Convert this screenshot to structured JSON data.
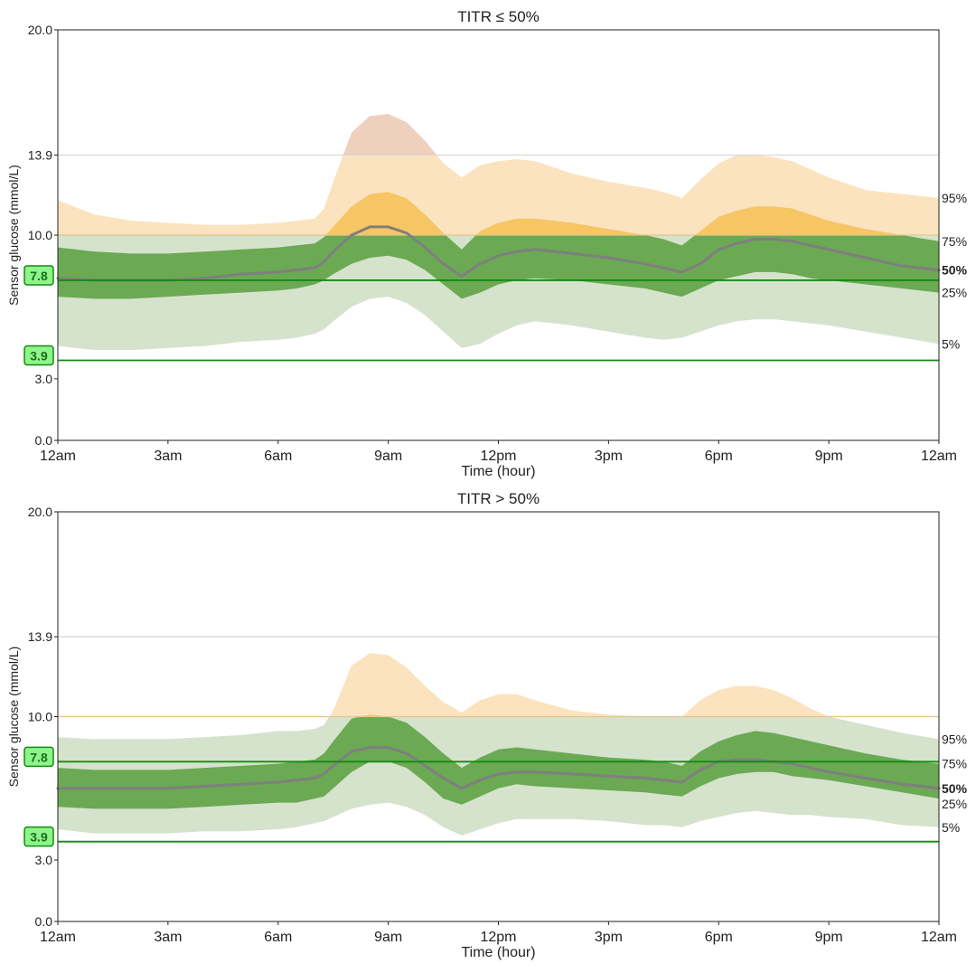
{
  "chart_data": [
    {
      "type": "area",
      "title": "TITR ≤ 50%",
      "xlabel": "Time (hour)",
      "ylabel": "Sensor glucose (mmol/L)",
      "ylim": [
        0,
        20
      ],
      "xlim": [
        0,
        24
      ],
      "yticks": [
        {
          "value": 0,
          "label": "0.0"
        },
        {
          "value": 3,
          "label": "3.0"
        },
        {
          "value": 10,
          "label": "10.0"
        },
        {
          "value": 13.9,
          "label": "13.9"
        },
        {
          "value": 20,
          "label": "20.0"
        }
      ],
      "xticks": [
        {
          "value": 0,
          "label": "12am"
        },
        {
          "value": 3,
          "label": "3am"
        },
        {
          "value": 6,
          "label": "6am"
        },
        {
          "value": 9,
          "label": "9am"
        },
        {
          "value": 12,
          "label": "12pm"
        },
        {
          "value": 15,
          "label": "3pm"
        },
        {
          "value": 18,
          "label": "6pm"
        },
        {
          "value": 21,
          "label": "9pm"
        },
        {
          "value": 24,
          "label": "12am"
        }
      ],
      "target_lines": [
        {
          "value": 7.8,
          "label": "7.8",
          "color": "#138a13",
          "boxed": true
        },
        {
          "value": 3.9,
          "label": "3.9",
          "color": "#138a13",
          "boxed": true
        }
      ],
      "reference_lines": [
        {
          "value": 10.0,
          "color": "#e7c48a"
        },
        {
          "value": 13.9,
          "color": "#d8d8d8"
        }
      ],
      "x": [
        0,
        1,
        2,
        3,
        4,
        5,
        6,
        6.5,
        7,
        7.25,
        7.5,
        8,
        8.5,
        9,
        9.5,
        10,
        10.5,
        11,
        11.5,
        12,
        12.5,
        13,
        14,
        15,
        16,
        16.5,
        17,
        17.5,
        18,
        18.5,
        19,
        19.5,
        20,
        20.5,
        21,
        22,
        23,
        24
      ],
      "series": [
        {
          "name": "5%",
          "values": [
            4.6,
            4.4,
            4.4,
            4.5,
            4.6,
            4.8,
            4.9,
            5.0,
            5.2,
            5.4,
            5.8,
            6.5,
            6.9,
            7.0,
            6.7,
            6.1,
            5.3,
            4.5,
            4.7,
            5.2,
            5.6,
            5.8,
            5.6,
            5.3,
            5.0,
            4.9,
            5.0,
            5.3,
            5.6,
            5.8,
            5.9,
            5.9,
            5.8,
            5.7,
            5.6,
            5.3,
            5.0,
            4.7
          ]
        },
        {
          "name": "25%",
          "values": [
            7.0,
            6.9,
            6.9,
            7.0,
            7.1,
            7.2,
            7.3,
            7.4,
            7.6,
            7.8,
            8.1,
            8.6,
            8.9,
            9.0,
            8.8,
            8.3,
            7.6,
            6.9,
            7.2,
            7.6,
            7.8,
            7.9,
            7.8,
            7.6,
            7.4,
            7.2,
            7.0,
            7.4,
            7.8,
            8.0,
            8.2,
            8.2,
            8.1,
            7.9,
            7.8,
            7.6,
            7.4,
            7.2
          ]
        },
        {
          "name": "50%",
          "values": [
            7.9,
            7.8,
            7.8,
            7.8,
            7.9,
            8.1,
            8.2,
            8.3,
            8.4,
            8.7,
            9.2,
            10.0,
            10.4,
            10.4,
            10.1,
            9.4,
            8.6,
            8.0,
            8.6,
            9.0,
            9.2,
            9.3,
            9.1,
            8.9,
            8.6,
            8.4,
            8.2,
            8.6,
            9.3,
            9.6,
            9.8,
            9.8,
            9.7,
            9.5,
            9.3,
            8.9,
            8.5,
            8.3
          ]
        },
        {
          "name": "75%",
          "values": [
            9.4,
            9.2,
            9.1,
            9.1,
            9.2,
            9.3,
            9.4,
            9.5,
            9.6,
            9.9,
            10.4,
            11.4,
            12.0,
            12.1,
            11.8,
            11.0,
            10.1,
            9.3,
            10.2,
            10.6,
            10.8,
            10.8,
            10.6,
            10.3,
            10.0,
            9.8,
            9.5,
            10.2,
            10.9,
            11.2,
            11.4,
            11.4,
            11.3,
            11.0,
            10.7,
            10.3,
            10.0,
            9.7
          ]
        },
        {
          "name": "95%",
          "values": [
            11.7,
            11.0,
            10.7,
            10.6,
            10.5,
            10.5,
            10.6,
            10.7,
            10.8,
            11.3,
            12.6,
            15.0,
            15.8,
            15.9,
            15.5,
            14.6,
            13.5,
            12.8,
            13.4,
            13.6,
            13.7,
            13.6,
            13.0,
            12.6,
            12.3,
            12.1,
            11.8,
            12.7,
            13.5,
            13.9,
            13.9,
            13.8,
            13.6,
            13.2,
            12.8,
            12.2,
            12.0,
            11.8
          ]
        }
      ],
      "right_labels": [
        "95%",
        "75%",
        "50%",
        "25%",
        "5%"
      ],
      "colors": {
        "outer_in_range": "#d5e3cc",
        "inner_in_range": "#6ba953",
        "outer_high": "#fbe3bf",
        "inner_high": "#f6c665",
        "outer_very_high": "#efcfbd",
        "inner_very_high": "#e7a228",
        "median": "#7f7f7f",
        "target": "#138a13",
        "target_box": "#8ef58a"
      }
    },
    {
      "type": "area",
      "title": "TITR > 50%",
      "xlabel": "Time (hour)",
      "ylabel": "Sensor glucose (mmol/L)",
      "ylim": [
        0,
        20
      ],
      "xlim": [
        0,
        24
      ],
      "yticks": [
        {
          "value": 0,
          "label": "0.0"
        },
        {
          "value": 3,
          "label": "3.0"
        },
        {
          "value": 10,
          "label": "10.0"
        },
        {
          "value": 13.9,
          "label": "13.9"
        },
        {
          "value": 20,
          "label": "20.0"
        }
      ],
      "xticks": [
        {
          "value": 0,
          "label": "12am"
        },
        {
          "value": 3,
          "label": "3am"
        },
        {
          "value": 6,
          "label": "6am"
        },
        {
          "value": 9,
          "label": "9am"
        },
        {
          "value": 12,
          "label": "12pm"
        },
        {
          "value": 15,
          "label": "3pm"
        },
        {
          "value": 18,
          "label": "6pm"
        },
        {
          "value": 21,
          "label": "9pm"
        },
        {
          "value": 24,
          "label": "12am"
        }
      ],
      "target_lines": [
        {
          "value": 7.8,
          "label": "7.8",
          "color": "#138a13",
          "boxed": true
        },
        {
          "value": 3.9,
          "label": "3.9",
          "color": "#138a13",
          "boxed": true
        }
      ],
      "reference_lines": [
        {
          "value": 10.0,
          "color": "#e7c48a"
        },
        {
          "value": 13.9,
          "color": "#d8d8d8"
        }
      ],
      "x": [
        0,
        1,
        2,
        3,
        4,
        5,
        6,
        6.5,
        7,
        7.25,
        7.5,
        8,
        8.5,
        9,
        9.5,
        10,
        10.5,
        11,
        11.5,
        12,
        12.5,
        13,
        14,
        15,
        16,
        16.5,
        17,
        17.5,
        18,
        18.5,
        19,
        19.5,
        20,
        20.5,
        21,
        22,
        23,
        24
      ],
      "series": [
        {
          "name": "5%",
          "values": [
            4.5,
            4.3,
            4.3,
            4.3,
            4.4,
            4.4,
            4.5,
            4.6,
            4.8,
            4.9,
            5.1,
            5.5,
            5.7,
            5.8,
            5.6,
            5.2,
            4.6,
            4.2,
            4.5,
            4.8,
            5.0,
            5.0,
            5.0,
            4.9,
            4.7,
            4.7,
            4.6,
            4.9,
            5.1,
            5.3,
            5.4,
            5.3,
            5.2,
            5.2,
            5.1,
            5.0,
            4.7,
            4.6
          ]
        },
        {
          "name": "25%",
          "values": [
            5.6,
            5.5,
            5.5,
            5.5,
            5.6,
            5.7,
            5.8,
            5.8,
            6.0,
            6.1,
            6.5,
            7.3,
            7.8,
            7.8,
            7.5,
            6.8,
            6.0,
            5.7,
            6.1,
            6.5,
            6.7,
            6.6,
            6.5,
            6.4,
            6.3,
            6.2,
            6.1,
            6.6,
            7.0,
            7.2,
            7.3,
            7.3,
            7.1,
            7.0,
            6.9,
            6.6,
            6.3,
            6.0
          ]
        },
        {
          "name": "50%",
          "values": [
            6.5,
            6.5,
            6.5,
            6.5,
            6.6,
            6.7,
            6.8,
            6.9,
            7.0,
            7.2,
            7.6,
            8.3,
            8.5,
            8.5,
            8.2,
            7.6,
            7.0,
            6.5,
            6.9,
            7.2,
            7.3,
            7.3,
            7.2,
            7.1,
            7.0,
            6.9,
            6.8,
            7.4,
            7.8,
            7.9,
            7.9,
            7.8,
            7.7,
            7.5,
            7.3,
            7.0,
            6.7,
            6.5
          ]
        },
        {
          "name": "75%",
          "values": [
            7.5,
            7.4,
            7.4,
            7.4,
            7.5,
            7.6,
            7.7,
            7.8,
            7.9,
            8.2,
            8.8,
            9.9,
            10.1,
            10.0,
            9.7,
            9.0,
            8.2,
            7.5,
            8.0,
            8.4,
            8.5,
            8.4,
            8.2,
            8.0,
            7.9,
            7.8,
            7.6,
            8.3,
            8.8,
            9.1,
            9.3,
            9.2,
            9.0,
            8.8,
            8.6,
            8.2,
            7.9,
            7.7
          ]
        },
        {
          "name": "95%",
          "values": [
            9.0,
            8.9,
            8.9,
            8.9,
            9.0,
            9.1,
            9.3,
            9.3,
            9.4,
            9.6,
            10.3,
            12.5,
            13.1,
            13.0,
            12.4,
            11.5,
            10.7,
            10.2,
            10.8,
            11.1,
            11.1,
            10.8,
            10.3,
            10.1,
            10.0,
            10.0,
            10.0,
            10.8,
            11.3,
            11.5,
            11.5,
            11.3,
            10.9,
            10.4,
            10.0,
            9.6,
            9.2,
            8.9
          ]
        }
      ],
      "right_labels": [
        "95%",
        "75%",
        "50%",
        "25%",
        "5%"
      ],
      "colors": {
        "outer_in_range": "#d5e3cc",
        "inner_in_range": "#6ba953",
        "outer_high": "#fbe3bf",
        "inner_high": "#f6c665",
        "outer_very_high": "#efcfbd",
        "inner_very_high": "#e7a228",
        "median": "#7f7f7f",
        "target": "#138a13",
        "target_box": "#8ef58a"
      }
    }
  ]
}
